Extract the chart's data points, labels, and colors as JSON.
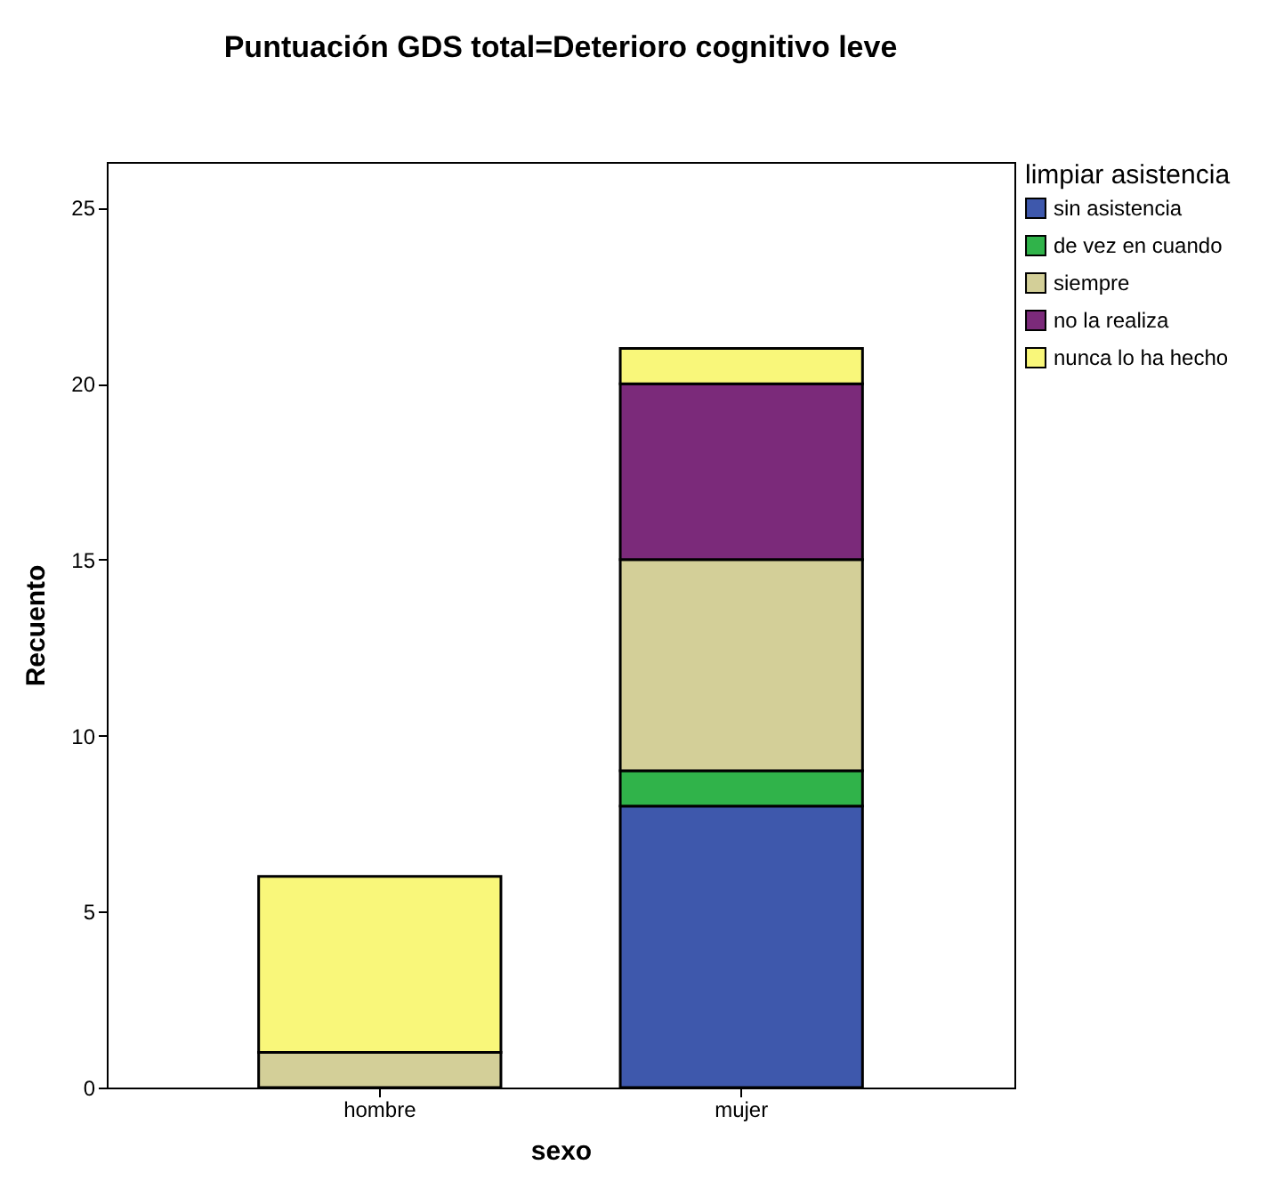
{
  "chart_data": {
    "type": "bar",
    "title": "Puntuación GDS total=Deterioro cognitivo leve",
    "xlabel": "sexo",
    "ylabel": "Recuento",
    "legend_title": "limpiar asistencia",
    "categories": [
      "hombre",
      "mujer"
    ],
    "stacked": true,
    "series": [
      {
        "name": "sin asistencia",
        "color": "#3e58ac",
        "values": [
          0,
          8
        ]
      },
      {
        "name": "de vez en cuando",
        "color": "#30b34a",
        "values": [
          0,
          1
        ]
      },
      {
        "name": "siempre",
        "color": "#d3cf98",
        "values": [
          1,
          6
        ]
      },
      {
        "name": "no la realiza",
        "color": "#7b2a7a",
        "values": [
          0,
          5
        ]
      },
      {
        "name": "nunca lo ha hecho",
        "color": "#f9f77a",
        "values": [
          5,
          1
        ]
      }
    ],
    "ylim": [
      0,
      26.3
    ],
    "yticks": [
      0,
      5,
      10,
      15,
      20,
      25
    ],
    "grid": false,
    "legend": "top right"
  }
}
